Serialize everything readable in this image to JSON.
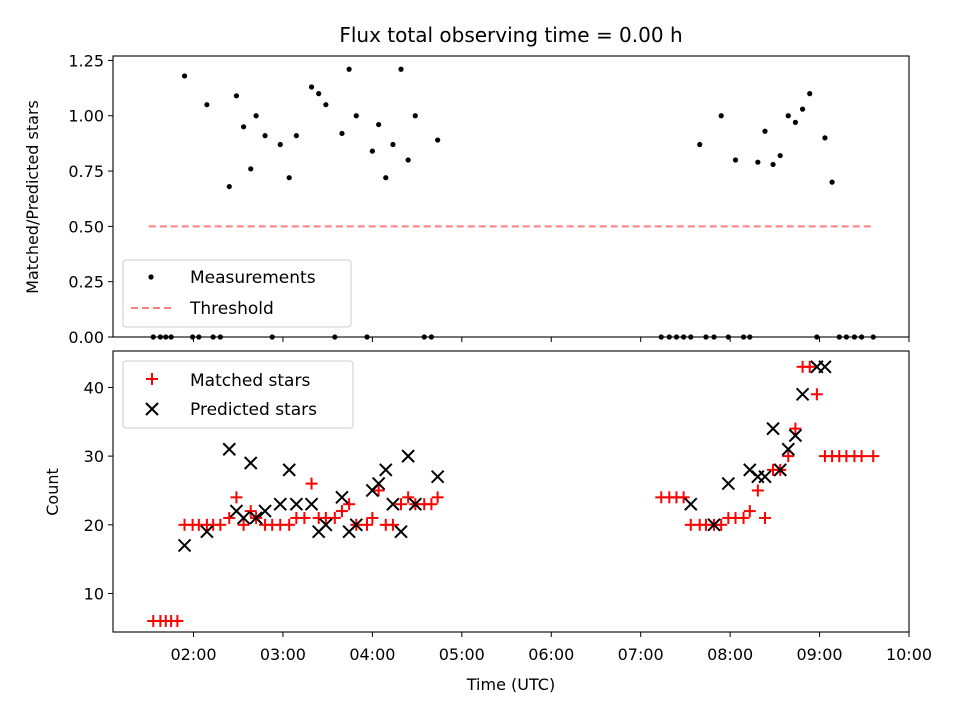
{
  "chart_data": [
    {
      "type": "scatter",
      "title": "Flux total observing time = 0.00 h",
      "ylabel": "Matched/Predicted stars",
      "xlabel": "",
      "x_unit": "hours UTC",
      "xlim": [
        1.1,
        10.0
      ],
      "ylim": [
        0.0,
        1.27
      ],
      "y_ticks": [
        0.0,
        0.25,
        0.5,
        0.75,
        1.0,
        1.25
      ],
      "y_tick_labels": [
        "0.00",
        "0.25",
        "0.50",
        "0.75",
        "1.00",
        "1.25"
      ],
      "x_ticks": [
        2,
        3,
        4,
        5,
        6,
        7,
        8,
        9,
        10
      ],
      "legend": {
        "placement": "lower-left",
        "entries": [
          "Measurements",
          "Threshold"
        ]
      },
      "threshold": {
        "name": "Threshold",
        "y": 0.5,
        "x_start": 1.5,
        "x_end": 9.6,
        "color": "#ff7f7f"
      },
      "series": [
        {
          "name": "Measurements",
          "color": "#000000",
          "x": [
            1.55,
            1.63,
            1.69,
            1.75,
            1.9,
            1.99,
            2.06,
            2.15,
            2.22,
            2.3,
            2.4,
            2.48,
            2.56,
            2.64,
            2.7,
            2.8,
            2.88,
            2.97,
            3.07,
            3.15,
            3.32,
            3.4,
            3.48,
            3.58,
            3.66,
            3.74,
            3.82,
            3.94,
            4.0,
            4.07,
            4.15,
            4.23,
            4.32,
            4.4,
            4.48,
            4.58,
            4.66,
            4.73,
            7.23,
            7.32,
            7.4,
            7.48,
            7.56,
            7.66,
            7.73,
            7.82,
            7.9,
            7.98,
            8.06,
            8.15,
            8.22,
            8.31,
            8.39,
            8.48,
            8.56,
            8.65,
            8.73,
            8.81,
            8.89,
            8.97,
            9.06,
            9.14,
            9.22,
            9.3,
            9.39,
            9.47,
            9.6
          ],
          "y": [
            0.0,
            0.0,
            0.0,
            0.0,
            1.18,
            0.0,
            0.0,
            1.05,
            0.0,
            0.0,
            0.68,
            1.09,
            0.95,
            0.76,
            1.0,
            0.91,
            0.0,
            0.87,
            0.72,
            0.91,
            1.13,
            1.1,
            1.05,
            0.0,
            0.92,
            1.21,
            1.0,
            0.0,
            0.84,
            0.96,
            0.72,
            0.87,
            1.21,
            0.8,
            1.0,
            0.0,
            0.0,
            0.89,
            0.0,
            0.0,
            0.0,
            0.0,
            0.0,
            0.87,
            0.0,
            0.0,
            1.0,
            0.0,
            0.8,
            0.0,
            0.0,
            0.79,
            0.93,
            0.78,
            0.82,
            1.0,
            0.97,
            1.03,
            1.1,
            0.0,
            0.9,
            0.7,
            0.0,
            0.0,
            0.0,
            0.0,
            0.0
          ]
        }
      ]
    },
    {
      "type": "scatter",
      "title": "",
      "ylabel": "Count",
      "xlabel": "Time (UTC)",
      "x_unit": "hours UTC",
      "xlim": [
        1.1,
        10.0
      ],
      "ylim": [
        4.4,
        45.3
      ],
      "y_ticks": [
        10,
        20,
        30,
        40
      ],
      "y_tick_labels": [
        "10",
        "20",
        "30",
        "40"
      ],
      "x_ticks": [
        2,
        3,
        4,
        5,
        6,
        7,
        8,
        9,
        10
      ],
      "x_tick_labels": [
        "02:00",
        "03:00",
        "04:00",
        "05:00",
        "06:00",
        "07:00",
        "08:00",
        "09:00",
        "10:00"
      ],
      "legend": {
        "placement": "top-left",
        "entries": [
          "Matched stars",
          "Predicted stars"
        ]
      },
      "series": [
        {
          "name": "Matched stars",
          "color": "#ff0000",
          "marker": "plus",
          "x": [
            1.55,
            1.63,
            1.69,
            1.75,
            1.82,
            1.9,
            1.99,
            2.06,
            2.15,
            2.22,
            2.3,
            2.4,
            2.48,
            2.56,
            2.64,
            2.7,
            2.8,
            2.88,
            2.97,
            3.07,
            3.15,
            3.24,
            3.32,
            3.4,
            3.48,
            3.58,
            3.66,
            3.74,
            3.82,
            3.94,
            4.0,
            4.07,
            4.15,
            4.23,
            4.32,
            4.4,
            4.48,
            4.58,
            4.66,
            4.73,
            7.23,
            7.32,
            7.4,
            7.48,
            7.56,
            7.66,
            7.73,
            7.82,
            7.9,
            7.98,
            8.06,
            8.15,
            8.22,
            8.31,
            8.39,
            8.48,
            8.56,
            8.65,
            8.73,
            8.81,
            8.89,
            8.97,
            9.06,
            9.14,
            9.22,
            9.3,
            9.39,
            9.47,
            9.6
          ],
          "y": [
            6,
            6,
            6,
            6,
            6,
            20,
            20,
            20,
            20,
            20,
            20,
            21,
            24,
            20,
            22,
            21,
            20,
            20,
            20,
            20,
            21,
            21,
            26,
            21,
            21,
            21,
            22,
            23,
            20,
            20,
            21,
            25,
            20,
            20,
            23,
            24,
            23,
            23,
            23,
            24,
            24,
            24,
            24,
            24,
            20,
            20,
            20,
            20,
            20,
            21,
            21,
            21,
            22,
            25,
            21,
            28,
            28,
            30,
            34,
            43,
            43,
            39,
            30,
            30,
            30,
            30,
            30,
            30,
            30
          ]
        },
        {
          "name": "Predicted stars",
          "color": "#000000",
          "marker": "x",
          "x": [
            1.9,
            2.15,
            2.4,
            2.48,
            2.56,
            2.64,
            2.7,
            2.8,
            2.97,
            3.07,
            3.15,
            3.32,
            3.4,
            3.48,
            3.66,
            3.74,
            3.82,
            4.0,
            4.07,
            4.15,
            4.23,
            4.32,
            4.4,
            4.48,
            4.73,
            7.56,
            7.82,
            7.98,
            8.22,
            8.31,
            8.39,
            8.48,
            8.56,
            8.65,
            8.73,
            8.81,
            8.97,
            9.06
          ],
          "y": [
            17,
            19,
            31,
            22,
            21,
            29,
            21,
            22,
            23,
            28,
            23,
            23,
            19,
            20,
            24,
            19,
            20,
            25,
            26,
            28,
            23,
            19,
            30,
            23,
            27,
            23,
            20,
            26,
            28,
            27,
            27,
            34,
            28,
            31,
            33,
            39,
            43,
            43
          ]
        }
      ]
    }
  ]
}
